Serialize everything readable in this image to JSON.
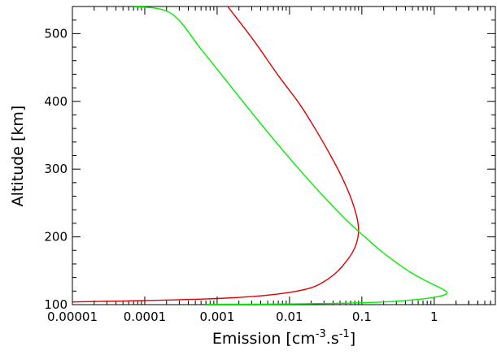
{
  "chart_data": {
    "type": "line",
    "title": "",
    "xlabel": {
      "base": "Emission  [cm",
      "sup1": "-3",
      "mid": ".s",
      "sup2": "-1",
      "end": "]"
    },
    "ylabel": "Altitude  [km]",
    "xscale": "log",
    "xlim": [
      1e-05,
      7
    ],
    "ylim": [
      100,
      540
    ],
    "grid": false,
    "x_ticks": [
      {
        "value": 1e-05,
        "label": "0.00001"
      },
      {
        "value": 0.0001,
        "label": "0.0001"
      },
      {
        "value": 0.001,
        "label": "0.001"
      },
      {
        "value": 0.01,
        "label": "0.01"
      },
      {
        "value": 0.1,
        "label": "0.1"
      },
      {
        "value": 1,
        "label": "1"
      }
    ],
    "y_ticks": [
      {
        "value": 100,
        "label": "100"
      },
      {
        "value": 200,
        "label": "200"
      },
      {
        "value": 300,
        "label": "300"
      },
      {
        "value": 400,
        "label": "400"
      },
      {
        "value": 500,
        "label": "500"
      }
    ],
    "series": [
      {
        "color": "#e00000",
        "points": [
          [
            1e-05,
            104
          ],
          [
            0.0001,
            106
          ],
          [
            0.001,
            109
          ],
          [
            0.004,
            113
          ],
          [
            0.01,
            118
          ],
          [
            0.02,
            125
          ],
          [
            0.03,
            134
          ],
          [
            0.045,
            148
          ],
          [
            0.06,
            163
          ],
          [
            0.075,
            178
          ],
          [
            0.085,
            192
          ],
          [
            0.09,
            207
          ],
          [
            0.088,
            222
          ],
          [
            0.08,
            240
          ],
          [
            0.068,
            262
          ],
          [
            0.052,
            290
          ],
          [
            0.037,
            320
          ],
          [
            0.024,
            355
          ],
          [
            0.014,
            395
          ],
          [
            0.0068,
            440
          ],
          [
            0.0032,
            490
          ],
          [
            0.0014,
            540
          ]
        ]
      },
      {
        "color": "#00ee00",
        "points": [
          [
            0.0007,
            100.5
          ],
          [
            0.01,
            101
          ],
          [
            0.05,
            102
          ],
          [
            0.2,
            104
          ],
          [
            0.5,
            107
          ],
          [
            0.9,
            110
          ],
          [
            1.35,
            114
          ],
          [
            1.5,
            118
          ],
          [
            1.2,
            125
          ],
          [
            0.8,
            134
          ],
          [
            0.5,
            146
          ],
          [
            0.3,
            162
          ],
          [
            0.18,
            180
          ],
          [
            0.11,
            200
          ],
          [
            0.065,
            222
          ],
          [
            0.036,
            250
          ],
          [
            0.018,
            285
          ],
          [
            0.0085,
            325
          ],
          [
            0.0038,
            370
          ],
          [
            0.0016,
            420
          ],
          [
            0.00062,
            475
          ],
          [
            0.00023,
            530
          ],
          [
            7e-05,
            540
          ]
        ]
      }
    ]
  }
}
